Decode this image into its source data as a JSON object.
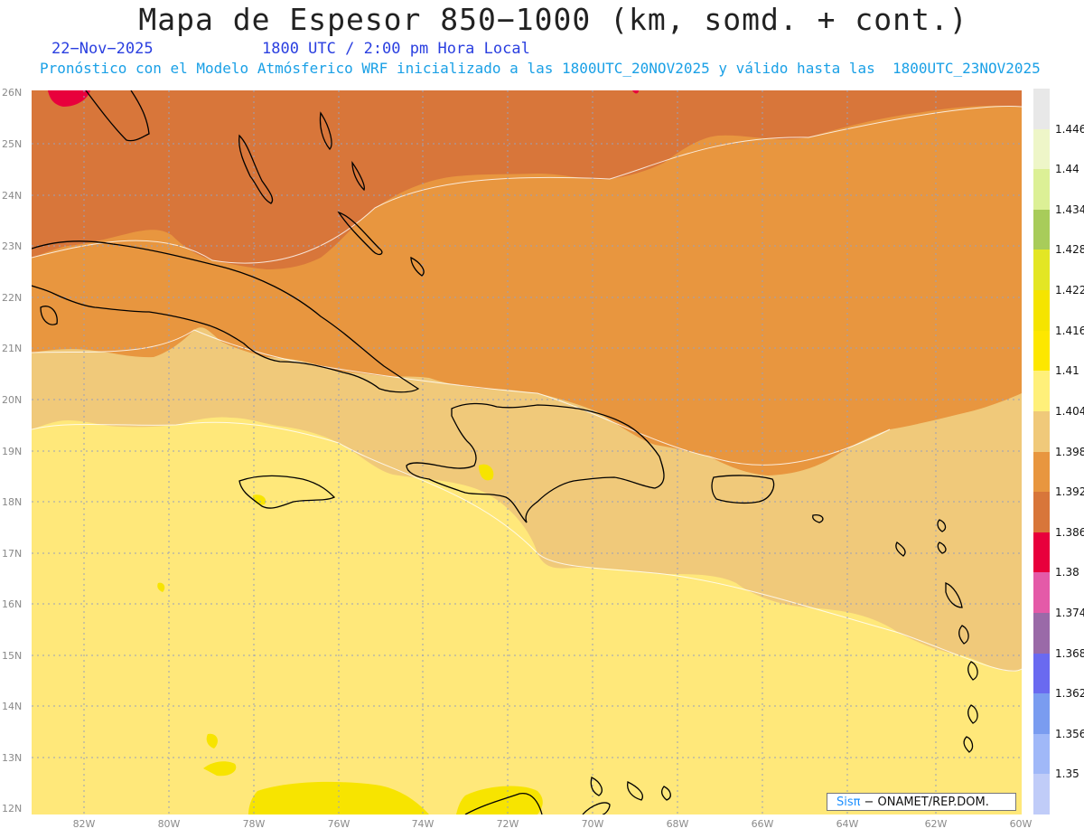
{
  "header": {
    "title": "Mapa de Espesor 850−1000 (km, somd. + cont.)",
    "date": "22−Nov−2025",
    "time": "1800 UTC / 2:00 pm Hora Local",
    "subtitle": "Pronóstico con el Modelo Atmósferico WRF inicializado a las 1800UTC_20NOV2025 y válido hasta las  1800UTC_23NOV2025"
  },
  "map": {
    "lat_labels": [
      "26N",
      "25N",
      "24N",
      "23N",
      "22N",
      "21N",
      "20N",
      "19N",
      "18N",
      "17N",
      "16N",
      "15N",
      "14N",
      "13N",
      "12N"
    ],
    "lon_labels": [
      "82W",
      "80W",
      "78W",
      "76W",
      "74W",
      "72W",
      "70W",
      "68W",
      "66W",
      "64W",
      "62W",
      "60W"
    ],
    "colors": {
      "band_1386": "#d8763a",
      "band_1392": "#e8963f",
      "band_1398": "#f0c97a",
      "band_1404": "#ffe87a",
      "band_1410": "#f7e400",
      "band_1380": "#e8003c"
    }
  },
  "colorbar": {
    "labels": [
      "1.446",
      "1.44",
      "1.434",
      "1.428",
      "1.422",
      "1.416",
      "1.41",
      "1.404",
      "1.398",
      "1.392",
      "1.386",
      "1.38",
      "1.374",
      "1.368",
      "1.362",
      "1.356",
      "1.35"
    ],
    "colors": [
      "#e8e8e8",
      "#eef6c8",
      "#dcf096",
      "#a8cc5a",
      "#e3e624",
      "#f5e400",
      "#fde700",
      "#fff07a",
      "#f0c97a",
      "#e8963f",
      "#d8763a",
      "#e8003c",
      "#e45aa8",
      "#9a6aa8",
      "#6a6af0",
      "#7a9cf0",
      "#a0b8f8",
      "#c0ccf8"
    ]
  },
  "credit": {
    "logo": "Sisπ",
    "text": "− ONAMET/REP.DOM."
  }
}
